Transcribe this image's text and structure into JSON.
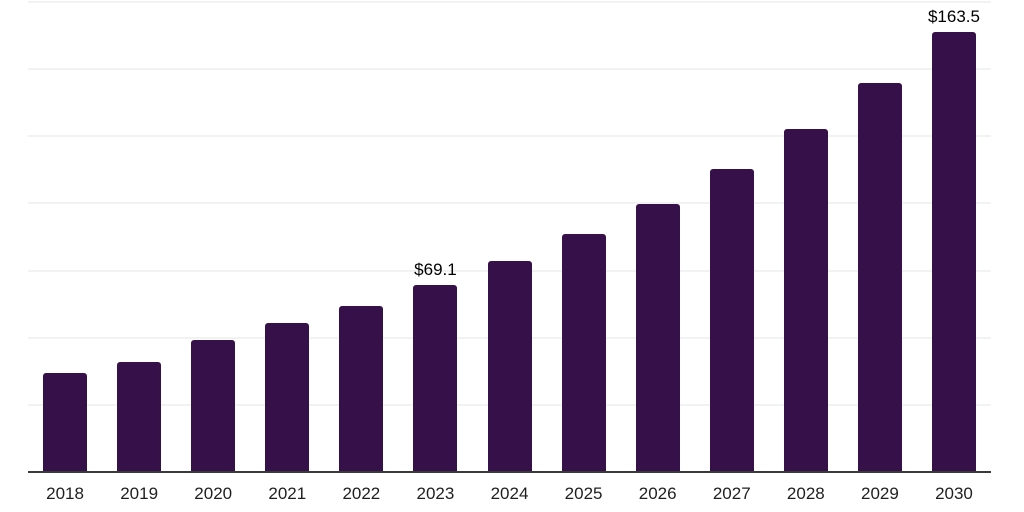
{
  "chart_data": {
    "type": "bar",
    "title": "",
    "xlabel": "",
    "ylabel": "",
    "categories": [
      "2018",
      "2019",
      "2020",
      "2021",
      "2022",
      "2023",
      "2024",
      "2025",
      "2026",
      "2027",
      "2028",
      "2029",
      "2030"
    ],
    "values": [
      36.5,
      40.6,
      48.8,
      55.1,
      61.5,
      69.1,
      78.2,
      88.3,
      99.4,
      112.5,
      127.4,
      144.5,
      163.5
    ],
    "value_labels": [
      "",
      "",
      "",
      "",
      "",
      "$69.1",
      "",
      "",
      "",
      "",
      "",
      "",
      "$163.5"
    ],
    "ylim": [
      0,
      175
    ],
    "ytick_interval": 25,
    "grid": "horizontal",
    "legend": "none",
    "y_axis_tick_labels": "none",
    "bar_color": "#361149",
    "gridline_color": "#f2f2f2",
    "axis_line_color": "#3a3a3a",
    "tick_label_color": "#1f1f1f",
    "value_label_color": "#000000"
  }
}
